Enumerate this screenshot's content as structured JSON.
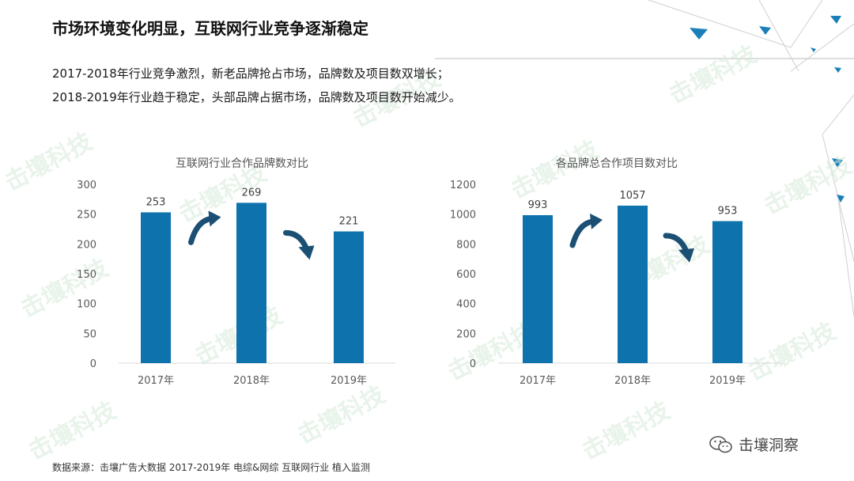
{
  "title": "市场环境变化明显，互联网行业竞争逐渐稳定",
  "subtitle_lines": [
    "2017-2018年行业竞争激烈，新老品牌抢占市场，品牌数及项目数双增长；",
    "2018-2019年行业趋于稳定，头部品牌占据市场，品牌数及项目数开始减少。"
  ],
  "source": "数据来源：击壤广告大数据 2017-2019年 电综&网综 互联网行业 植入监测",
  "brand": "击壤洞察",
  "watermark_text": "击壤科技",
  "colors": {
    "bar": "#0e72ad",
    "arrow": "#1b4f73",
    "accent": "#1a8fc7"
  },
  "chart_data": [
    {
      "type": "bar",
      "title": "互联网行业合作品牌数对比",
      "categories": [
        "2017年",
        "2018年",
        "2019年"
      ],
      "values": [
        253,
        269,
        221
      ],
      "ylim": [
        0,
        300
      ],
      "yticks": [
        0,
        50,
        100,
        150,
        200,
        250,
        300
      ],
      "grid": false,
      "annotations": [
        "up-arrow between 2017年 and 2018年",
        "down-arrow between 2018年 and 2019年"
      ]
    },
    {
      "type": "bar",
      "title": "各品牌总合作项目数对比",
      "categories": [
        "2017年",
        "2018年",
        "2019年"
      ],
      "values": [
        993,
        1057,
        953
      ],
      "ylim": [
        0,
        1200
      ],
      "yticks": [
        0,
        200,
        400,
        600,
        800,
        1000,
        1200
      ],
      "grid": false,
      "annotations": [
        "up-arrow between 2017年 and 2018年",
        "down-arrow between 2018年 and 2019年"
      ]
    }
  ]
}
